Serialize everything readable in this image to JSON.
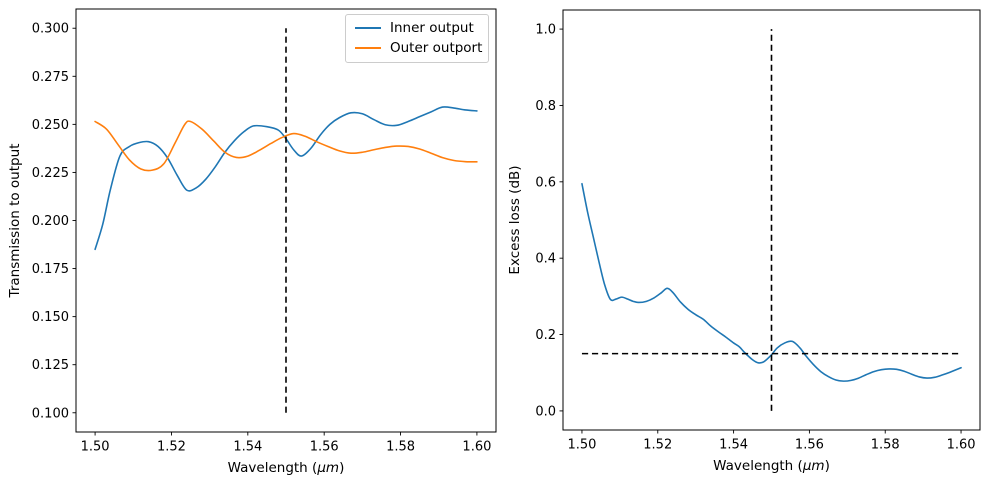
{
  "figure": {
    "background": "#ffffff",
    "text_color": "#000000"
  },
  "chart_data": [
    {
      "id": "transmission-vs-wavelength",
      "type": "line",
      "title": "",
      "xlabel": "Wavelength (μm)",
      "ylabel": "Transmission to output",
      "xlim": [
        1.495,
        1.605
      ],
      "ylim": [
        0.09,
        0.31
      ],
      "grid": false,
      "xticks": [
        1.5,
        1.52,
        1.54,
        1.56,
        1.58,
        1.6
      ],
      "xtick_labels": [
        "1.50",
        "1.52",
        "1.54",
        "1.56",
        "1.58",
        "1.60"
      ],
      "yticks": [
        0.1,
        0.125,
        0.15,
        0.175,
        0.2,
        0.225,
        0.25,
        0.275,
        0.3
      ],
      "ytick_labels": [
        "0.100",
        "0.125",
        "0.150",
        "0.175",
        "0.200",
        "0.225",
        "0.250",
        "0.275",
        "0.300"
      ],
      "legend": {
        "location": "upper right"
      },
      "guides": [
        {
          "type": "vline",
          "x": 1.55,
          "y_from": 0.1,
          "y_to": 0.3,
          "linestyle": "dashed",
          "color": "#000000"
        }
      ],
      "series": [
        {
          "name": "Inner output",
          "color": "#1f77b4",
          "x": [
            1.5,
            1.502,
            1.504,
            1.5065,
            1.509,
            1.5115,
            1.514,
            1.5165,
            1.519,
            1.5215,
            1.524,
            1.5265,
            1.529,
            1.5315,
            1.534,
            1.5365,
            1.539,
            1.5415,
            1.545,
            1.548,
            1.55,
            1.552,
            1.554,
            1.5565,
            1.559,
            1.5615,
            1.564,
            1.567,
            1.57,
            1.573,
            1.576,
            1.579,
            1.582,
            1.585,
            1.588,
            1.591,
            1.594,
            1.597,
            1.6
          ],
          "y": [
            0.185,
            0.198,
            0.216,
            0.2335,
            0.2385,
            0.2405,
            0.241,
            0.2385,
            0.2325,
            0.2235,
            0.2158,
            0.217,
            0.2215,
            0.228,
            0.2355,
            0.2415,
            0.2462,
            0.2492,
            0.2488,
            0.247,
            0.2425,
            0.2368,
            0.2335,
            0.2375,
            0.2445,
            0.25,
            0.2535,
            0.256,
            0.2555,
            0.2525,
            0.2498,
            0.2495,
            0.2515,
            0.254,
            0.2565,
            0.259,
            0.2585,
            0.2575,
            0.257
          ]
        },
        {
          "name": "Outer outport",
          "color": "#ff7f0e",
          "x": [
            1.5,
            1.503,
            1.506,
            1.509,
            1.512,
            1.515,
            1.518,
            1.521,
            1.5235,
            1.525,
            1.528,
            1.531,
            1.534,
            1.537,
            1.54,
            1.543,
            1.546,
            1.549,
            1.552,
            1.555,
            1.558,
            1.561,
            1.564,
            1.567,
            1.57,
            1.573,
            1.576,
            1.579,
            1.582,
            1.585,
            1.588,
            1.591,
            1.594,
            1.597,
            1.6
          ],
          "y": [
            0.2515,
            0.2475,
            0.2395,
            0.2315,
            0.2268,
            0.2262,
            0.2295,
            0.2405,
            0.25,
            0.2515,
            0.2475,
            0.2415,
            0.2355,
            0.2328,
            0.2335,
            0.2365,
            0.24,
            0.2432,
            0.2452,
            0.2438,
            0.241,
            0.2385,
            0.2362,
            0.235,
            0.2355,
            0.2368,
            0.238,
            0.2387,
            0.2385,
            0.2372,
            0.235,
            0.2327,
            0.2312,
            0.2306,
            0.2305
          ]
        }
      ]
    },
    {
      "id": "excess-loss-vs-wavelength",
      "type": "line",
      "title": "",
      "xlabel": "Wavelength (μm)",
      "ylabel": "Excess loss (dB)",
      "xlim": [
        1.495,
        1.605
      ],
      "ylim": [
        -0.05,
        1.05
      ],
      "grid": false,
      "xticks": [
        1.5,
        1.52,
        1.54,
        1.56,
        1.58,
        1.6
      ],
      "xtick_labels": [
        "1.50",
        "1.52",
        "1.54",
        "1.56",
        "1.58",
        "1.60"
      ],
      "yticks": [
        0.0,
        0.2,
        0.4,
        0.6,
        0.8,
        1.0
      ],
      "ytick_labels": [
        "0.0",
        "0.2",
        "0.4",
        "0.6",
        "0.8",
        "1.0"
      ],
      "legend": null,
      "guides": [
        {
          "type": "vline",
          "x": 1.55,
          "y_from": 0.0,
          "y_to": 1.0,
          "linestyle": "dashed",
          "color": "#000000"
        },
        {
          "type": "hline",
          "y": 0.15,
          "x_from": 1.5,
          "x_to": 1.6,
          "linestyle": "dashed",
          "color": "#000000"
        }
      ],
      "series": [
        {
          "name": "Excess loss",
          "color": "#1f77b4",
          "x": [
            1.5,
            1.5015,
            1.503,
            1.5045,
            1.506,
            1.5075,
            1.509,
            1.5105,
            1.512,
            1.5135,
            1.515,
            1.517,
            1.519,
            1.521,
            1.5225,
            1.524,
            1.526,
            1.528,
            1.53,
            1.532,
            1.534,
            1.536,
            1.538,
            1.54,
            1.5415,
            1.543,
            1.545,
            1.5465,
            1.548,
            1.55,
            1.5515,
            1.5535,
            1.5555,
            1.5575,
            1.559,
            1.561,
            1.563,
            1.565,
            1.567,
            1.569,
            1.571,
            1.573,
            1.575,
            1.577,
            1.579,
            1.581,
            1.583,
            1.585,
            1.587,
            1.589,
            1.591,
            1.593,
            1.595,
            1.597,
            1.6
          ],
          "y": [
            0.595,
            0.52,
            0.455,
            0.39,
            0.33,
            0.292,
            0.293,
            0.298,
            0.293,
            0.287,
            0.284,
            0.287,
            0.296,
            0.31,
            0.321,
            0.31,
            0.285,
            0.266,
            0.252,
            0.24,
            0.222,
            0.207,
            0.193,
            0.178,
            0.168,
            0.152,
            0.134,
            0.126,
            0.129,
            0.147,
            0.165,
            0.178,
            0.182,
            0.165,
            0.145,
            0.122,
            0.103,
            0.09,
            0.081,
            0.078,
            0.08,
            0.086,
            0.095,
            0.103,
            0.108,
            0.11,
            0.109,
            0.104,
            0.096,
            0.089,
            0.086,
            0.088,
            0.094,
            0.101,
            0.113
          ]
        }
      ]
    }
  ]
}
